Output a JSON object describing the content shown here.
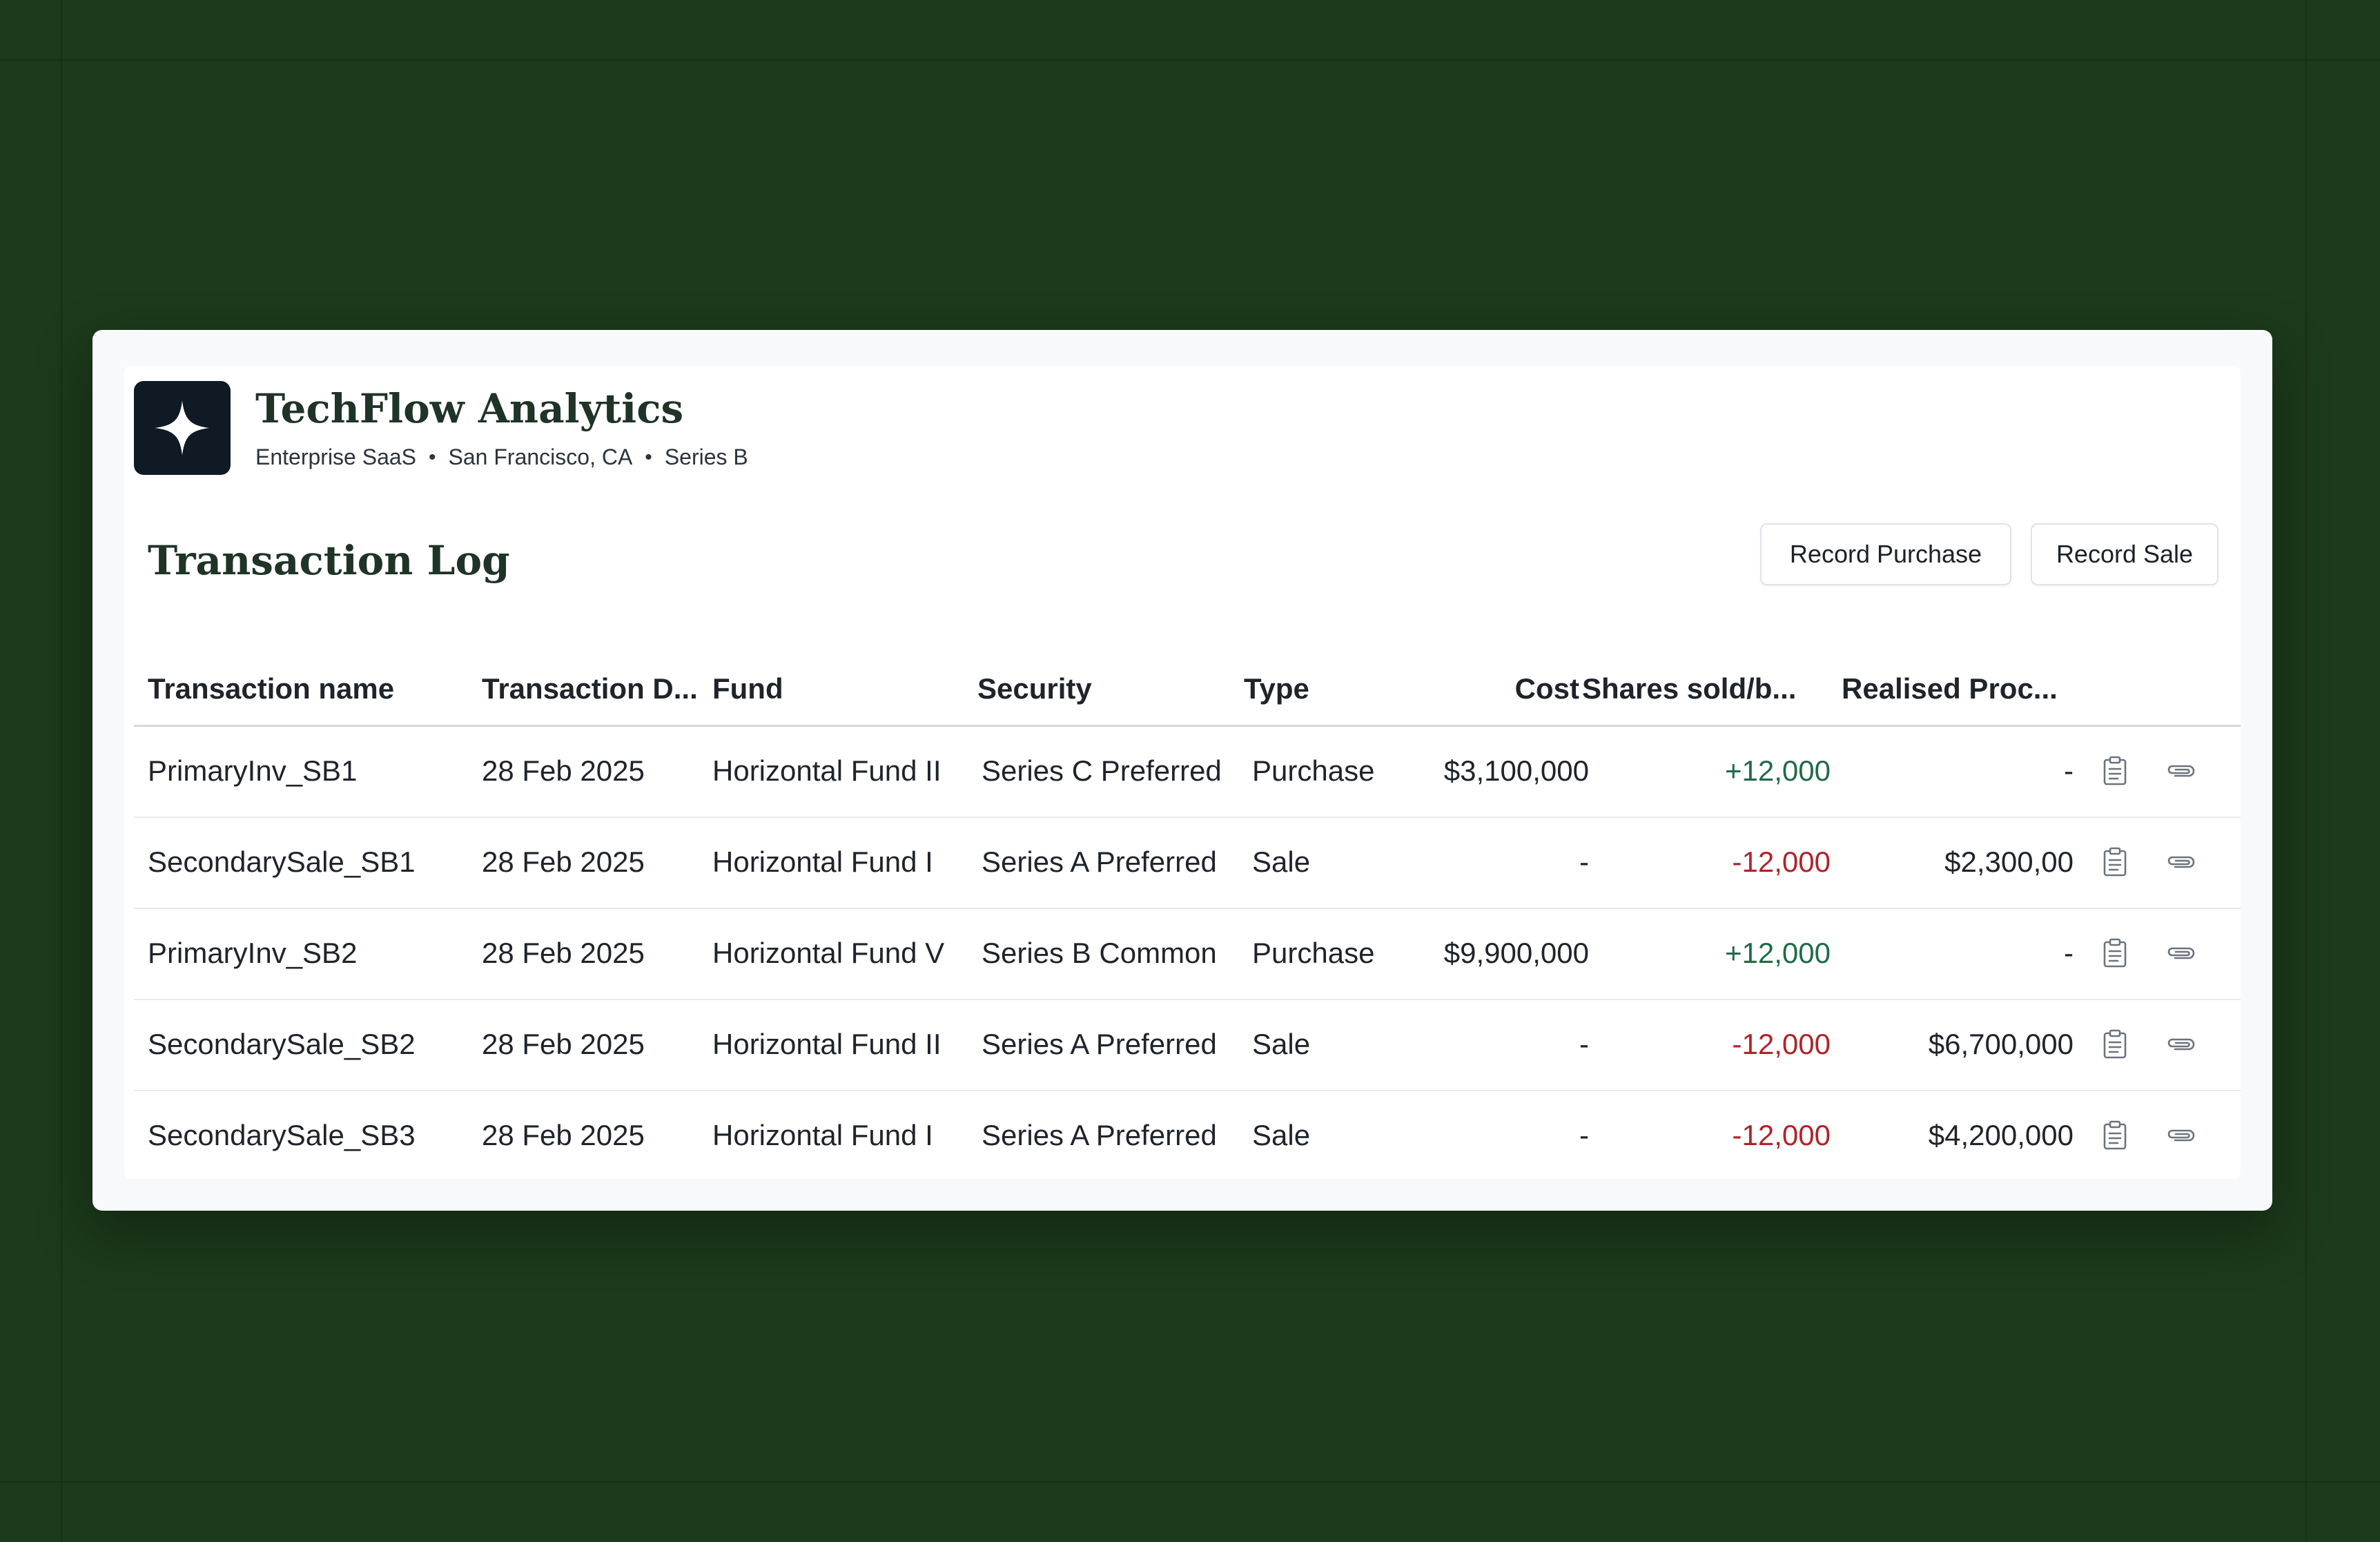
{
  "company": {
    "name": "TechFlow Analytics",
    "sector": "Enterprise SaaS",
    "location": "San Francisco, CA",
    "stage": "Series B",
    "separator": "•",
    "logo_icon": "four-point-star-icon"
  },
  "section": {
    "title": "Transaction Log",
    "record_purchase_label": "Record Purchase",
    "record_sale_label": "Record Sale"
  },
  "table": {
    "headers": {
      "name": "Transaction name",
      "date": "Transaction D...",
      "fund": "Fund",
      "security": "Security",
      "type": "Type",
      "cost": "Cost",
      "shares": "Shares sold/b...",
      "proceeds": "Realised Proc..."
    },
    "rows": [
      {
        "name": "PrimaryInv_SB1",
        "date": "28 Feb 2025",
        "fund": "Horizontal Fund II",
        "security": "Series C Preferred",
        "type": "Purchase",
        "cost": "$3,100,000",
        "shares": "+12,000",
        "proceeds": "-"
      },
      {
        "name": "SecondarySale_SB1",
        "date": "28 Feb 2025",
        "fund": "Horizontal Fund I",
        "security": "Series A Preferred",
        "type": "Sale",
        "cost": "-",
        "shares": "-12,000",
        "proceeds": "$2,300,00"
      },
      {
        "name": "PrimaryInv_SB2",
        "date": "28 Feb 2025",
        "fund": "Horizontal Fund V",
        "security": "Series B Common",
        "type": "Purchase",
        "cost": "$9,900,000",
        "shares": "+12,000",
        "proceeds": "-"
      },
      {
        "name": "SecondarySale_SB2",
        "date": "28 Feb 2025",
        "fund": "Horizontal Fund II",
        "security": "Series A Preferred",
        "type": "Sale",
        "cost": "-",
        "shares": "-12,000",
        "proceeds": "$6,700,000"
      },
      {
        "name": "SecondarySale_SB3",
        "date": "28 Feb 2025",
        "fund": "Horizontal Fund I",
        "security": "Series A Preferred",
        "type": "Sale",
        "cost": "-",
        "shares": "-12,000",
        "proceeds": "$4,200,000"
      }
    ],
    "row_icons": [
      "clipboard-icon",
      "paperclip-icon"
    ]
  },
  "colors": {
    "background": "#1c3a1c",
    "positive": "#1f6b45",
    "negative": "#b0232a",
    "logo_bg": "#0f1a24"
  }
}
